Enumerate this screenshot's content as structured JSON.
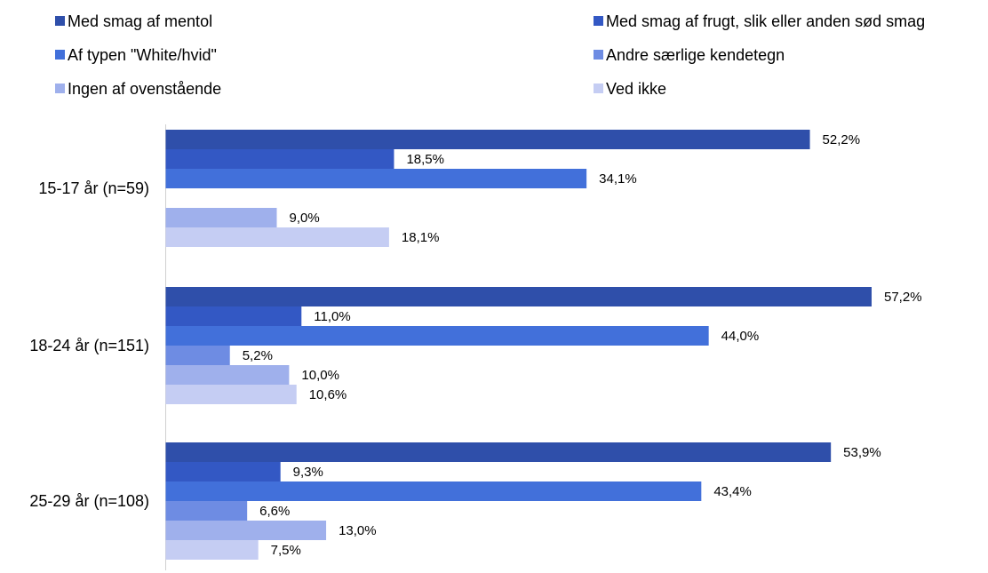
{
  "chart_data": {
    "type": "bar",
    "orientation": "horizontal",
    "categories": [
      "15-17 år (n=59)",
      "18-24 år (n=151)",
      "25-29 år (n=108)"
    ],
    "series": [
      {
        "name": "Med smag af mentol",
        "color": "#2F4FAA",
        "values": [
          52.2,
          57.2,
          53.9
        ],
        "labels": [
          "52,2%",
          "57,2%",
          "53,9%"
        ]
      },
      {
        "name": "Med smag af frugt, slik eller anden sød smag",
        "color": "#3358C4",
        "values": [
          18.5,
          11.0,
          9.3
        ],
        "labels": [
          "18,5%",
          "11,0%",
          "9,3%"
        ]
      },
      {
        "name": "Af typen \"White/hvid\"",
        "color": "#4270DA",
        "values": [
          34.1,
          44.0,
          43.4
        ],
        "labels": [
          "34,1%",
          "44,0%",
          "43,4%"
        ]
      },
      {
        "name": "Andre særlige kendetegn",
        "color": "#6E8CE3",
        "values": [
          null,
          5.2,
          6.6
        ],
        "labels": [
          "",
          "5,2%",
          "6,6%"
        ]
      },
      {
        "name": "Ingen af ovenstående",
        "color": "#9FB0EC",
        "values": [
          9.0,
          10.0,
          13.0
        ],
        "labels": [
          "9,0%",
          "10,0%",
          "13,0%"
        ]
      },
      {
        "name": "Ved ikke",
        "color": "#C5CDF3",
        "values": [
          18.1,
          10.6,
          7.5
        ],
        "labels": [
          "18,1%",
          "10,6%",
          "7,5%"
        ]
      }
    ],
    "legend_position": "top",
    "grid": false
  }
}
